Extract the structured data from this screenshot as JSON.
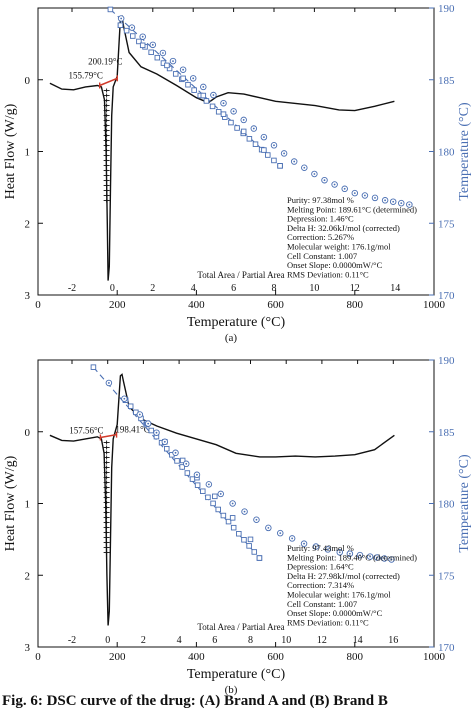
{
  "caption": "Fig. 6: DSC curve of the drug: (A) Brand A and (B) Brand B",
  "chart_data": [
    {
      "type": "line",
      "panel_label": "(a)",
      "xlabel": "Temperature (°C)",
      "ylabel": "Heat Flow (W/g)",
      "y2label": "Temperature (°C)",
      "xlim": [
        0,
        1000
      ],
      "ylim": [
        -1,
        3
      ],
      "y2lim": [
        170,
        190
      ],
      "x_ticks": [
        "0",
        "200",
        "400",
        "600",
        "800",
        "1000"
      ],
      "y_ticks": [
        "0",
        "1",
        "2",
        "3"
      ],
      "y2_ticks": [
        "170",
        "175",
        "180",
        "185",
        "190"
      ],
      "partial_area_ticks": [
        "-2",
        "0",
        "2",
        "4",
        "6",
        "8",
        "10",
        "12",
        "14"
      ],
      "partial_area_axis_label": "Total Area / Partial Area",
      "annotations": [
        "155.79°C",
        "200.19°C"
      ],
      "info_lines": [
        "Purity: 97.38mol %",
        "Melting Point: 189.61°C (determined)",
        "Depression: 1.46°C",
        "Delta H: 32.06kJ/mol (corrected)",
        "Correction: 5.267%",
        "Molecular weight: 176.1g/mol",
        "Cell Constant: 1.007",
        "Onset Slope: 0.0000mW/°C",
        "RMS Deviation: 0.11°C"
      ],
      "series": [
        {
          "values": [
            [
              30,
              0.05
            ],
            [
              60,
              0.13
            ],
            [
              90,
              0.14
            ],
            [
              120,
              0.1
            ],
            [
              150,
              0.08
            ],
            [
              160,
              0.1
            ],
            [
              168,
              0.28
            ],
            [
              172,
              1.0
            ],
            [
              175,
              2.0
            ],
            [
              177,
              2.8
            ],
            [
              180,
              2.6
            ],
            [
              183,
              1.5
            ],
            [
              186,
              0.5
            ],
            [
              190,
              0.1
            ],
            [
              200,
              -0.05
            ],
            [
              208,
              -0.85
            ],
            [
              212,
              -0.88
            ],
            [
              216,
              -0.75
            ],
            [
              230,
              -0.38
            ],
            [
              260,
              -0.18
            ],
            [
              300,
              -0.08
            ],
            [
              350,
              0.08
            ],
            [
              400,
              0.25
            ],
            [
              430,
              0.32
            ],
            [
              450,
              0.24
            ],
            [
              480,
              0.18
            ],
            [
              520,
              0.2
            ],
            [
              560,
              0.25
            ],
            [
              600,
              0.3
            ],
            [
              650,
              0.33
            ],
            [
              700,
              0.36
            ],
            [
              760,
              0.42
            ],
            [
              800,
              0.43
            ],
            [
              850,
              0.37
            ],
            [
              900,
              0.3
            ]
          ]
        },
        {
          "values": [
            [
              -0.1,
              189.9
            ],
            [
              0.4,
              188.8
            ],
            [
              1.5,
              187.4
            ],
            [
              2.7,
              186.0
            ],
            [
              3.5,
              185.1
            ],
            [
              4.5,
              183.9
            ],
            [
              5.5,
              182.6
            ],
            [
              6.5,
              181.4
            ],
            [
              7.5,
              180.1
            ],
            [
              8.3,
              179.0
            ]
          ]
        },
        {
          "values": [
            [
              -0.1,
              189.9
            ],
            [
              1.5,
              188.0
            ],
            [
              3.0,
              186.3
            ],
            [
              4.5,
              184.5
            ],
            [
              6.0,
              182.8
            ],
            [
              7.5,
              181.0
            ],
            [
              9.0,
              179.3
            ],
            [
              10.5,
              178.0
            ],
            [
              12.0,
              177.1
            ],
            [
              13.5,
              176.6
            ],
            [
              14.7,
              176.3
            ]
          ]
        }
      ]
    },
    {
      "type": "line",
      "panel_label": "(b)",
      "xlabel": "Temperature (°C)",
      "ylabel": "Heat Flow (W/g)",
      "y2label": "Temperature (°C)",
      "xlim": [
        0,
        1000
      ],
      "ylim": [
        -1,
        3
      ],
      "y2lim": [
        170,
        190
      ],
      "x_ticks": [
        "0",
        "200",
        "400",
        "600",
        "800",
        "1000"
      ],
      "y_ticks": [
        "0",
        "1",
        "2",
        "3"
      ],
      "y2_ticks": [
        "170",
        "175",
        "180",
        "185",
        "190"
      ],
      "partial_area_ticks": [
        "-2",
        "0",
        "2",
        "4",
        "6",
        "8",
        "10",
        "12",
        "14",
        "16"
      ],
      "partial_area_axis_label": "Total Area / Partial Area",
      "annotations": [
        "157.56°C",
        "198.41°C"
      ],
      "info_lines": [
        "Purity: 97.43mol %",
        "Melting Point: 189.40°C (determined)",
        "Depression: 1.64°C",
        "Delta H: 27.98kJ/mol (corrected)",
        "Correction: 7.314%",
        "Molecular weight: 176.1g/mol",
        "Cell Constant: 1.007",
        "Onset Slope: 0.0000mW/°C",
        "RMS Deviation: 0.11°C"
      ],
      "series": [
        {
          "values": [
            [
              30,
              0.05
            ],
            [
              60,
              0.12
            ],
            [
              90,
              0.13
            ],
            [
              120,
              0.1
            ],
            [
              150,
              0.07
            ],
            [
              160,
              0.1
            ],
            [
              167,
              0.3
            ],
            [
              171,
              1.0
            ],
            [
              174,
              2.0
            ],
            [
              177,
              2.7
            ],
            [
              180,
              2.5
            ],
            [
              183,
              1.5
            ],
            [
              186,
              0.5
            ],
            [
              190,
              0.1
            ],
            [
              200,
              -0.1
            ],
            [
              208,
              -0.78
            ],
            [
              212,
              -0.8
            ],
            [
              216,
              -0.7
            ],
            [
              230,
              -0.35
            ],
            [
              260,
              -0.18
            ],
            [
              300,
              -0.08
            ],
            [
              350,
              0.02
            ],
            [
              400,
              0.1
            ],
            [
              450,
              0.18
            ],
            [
              500,
              0.3
            ],
            [
              560,
              0.35
            ],
            [
              600,
              0.35
            ],
            [
              650,
              0.34
            ],
            [
              700,
              0.35
            ],
            [
              750,
              0.34
            ],
            [
              800,
              0.32
            ],
            [
              850,
              0.25
            ],
            [
              900,
              0.05
            ]
          ]
        },
        {
          "values": [
            [
              -0.8,
              189.5
            ],
            [
              1.0,
              187.2
            ],
            [
              2.2,
              185.6
            ],
            [
              3.2,
              184.3
            ],
            [
              4.2,
              183.0
            ],
            [
              5.0,
              181.8
            ],
            [
              6.0,
              180.5
            ],
            [
              7.0,
              179.0
            ],
            [
              8.0,
              177.5
            ],
            [
              8.5,
              176.2
            ]
          ]
        },
        {
          "values": [
            [
              -0.8,
              189.5
            ],
            [
              1.8,
              186.2
            ],
            [
              3.2,
              184.3
            ],
            [
              5.0,
              182.0
            ],
            [
              7.0,
              180.0
            ],
            [
              9.0,
              178.3
            ],
            [
              11.0,
              177.2
            ],
            [
              13.0,
              176.6
            ],
            [
              14.7,
              176.3
            ],
            [
              15.9,
              176.1
            ]
          ]
        }
      ]
    }
  ]
}
